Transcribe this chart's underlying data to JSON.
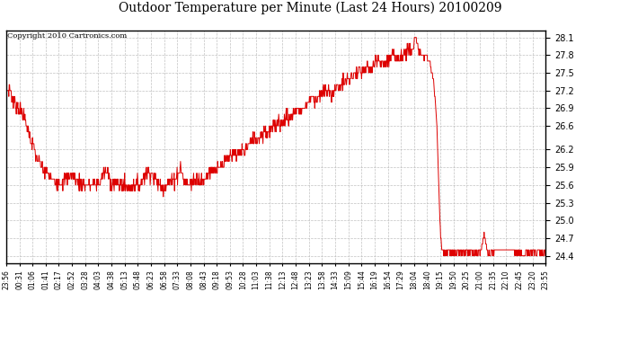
{
  "title": "Outdoor Temperature per Minute (Last 24 Hours) 20100209",
  "copyright": "Copyright 2010 Cartronics.com",
  "line_color": "#dd0000",
  "bg_color": "#ffffff",
  "plot_bg_color": "#ffffff",
  "grid_color": "#bbbbbb",
  "yticks": [
    24.4,
    24.7,
    25.0,
    25.3,
    25.6,
    25.9,
    26.2,
    26.6,
    26.9,
    27.2,
    27.5,
    27.8,
    28.1
  ],
  "ylim": [
    24.28,
    28.22
  ],
  "xtick_labels": [
    "23:56",
    "00:31",
    "01:06",
    "01:41",
    "02:17",
    "02:52",
    "03:28",
    "04:03",
    "04:38",
    "05:13",
    "05:48",
    "06:23",
    "06:58",
    "07:33",
    "08:08",
    "08:43",
    "09:18",
    "09:53",
    "10:28",
    "11:03",
    "11:38",
    "12:13",
    "12:48",
    "13:23",
    "13:58",
    "14:33",
    "15:09",
    "15:44",
    "16:19",
    "16:54",
    "17:29",
    "18:04",
    "18:40",
    "19:15",
    "19:50",
    "20:25",
    "21:00",
    "21:35",
    "22:10",
    "22:45",
    "23:20",
    "23:55"
  ],
  "figsize": [
    6.9,
    3.75
  ],
  "dpi": 100
}
